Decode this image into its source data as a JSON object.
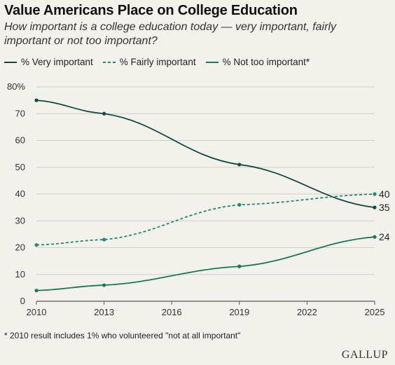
{
  "title": "Value Americans Place on College Education",
  "subtitle": "How important is a college education today — very important, fairly important or not too important?",
  "footnote": "* 2010 result includes 1% who volunteered \"not at all important\"",
  "brand": "GALLUP",
  "colors": {
    "very": "#0f4c45",
    "fairly": "#1a8a7d",
    "not_too": "#167a52"
  },
  "chart_data": {
    "type": "line",
    "title": "Value Americans Place on College Education",
    "xlabel": "",
    "ylabel": "",
    "x": [
      2010,
      2013,
      2019,
      2025
    ],
    "x_ticks": [
      "2010",
      "2013",
      "2016",
      "2019",
      "2022",
      "2025"
    ],
    "x_tick_values": [
      2010,
      2013,
      2016,
      2019,
      2022,
      2025
    ],
    "y_ticks": [
      "0",
      "10",
      "20",
      "30",
      "40",
      "50",
      "60",
      "70",
      "80%"
    ],
    "ylim": [
      0,
      80
    ],
    "grid": "horizontal",
    "legend_position": "top",
    "series": [
      {
        "key": "very",
        "name": "% Very important",
        "style": "solid",
        "values": [
          75,
          70,
          51,
          35
        ],
        "end_label": "35"
      },
      {
        "key": "fairly",
        "name": "% Fairly important",
        "style": "dashed",
        "values": [
          21,
          23,
          36,
          40
        ],
        "end_label": "40"
      },
      {
        "key": "not_too",
        "name": "% Not too important*",
        "style": "solid",
        "values": [
          4,
          6,
          13,
          24
        ],
        "end_label": "24"
      }
    ]
  }
}
